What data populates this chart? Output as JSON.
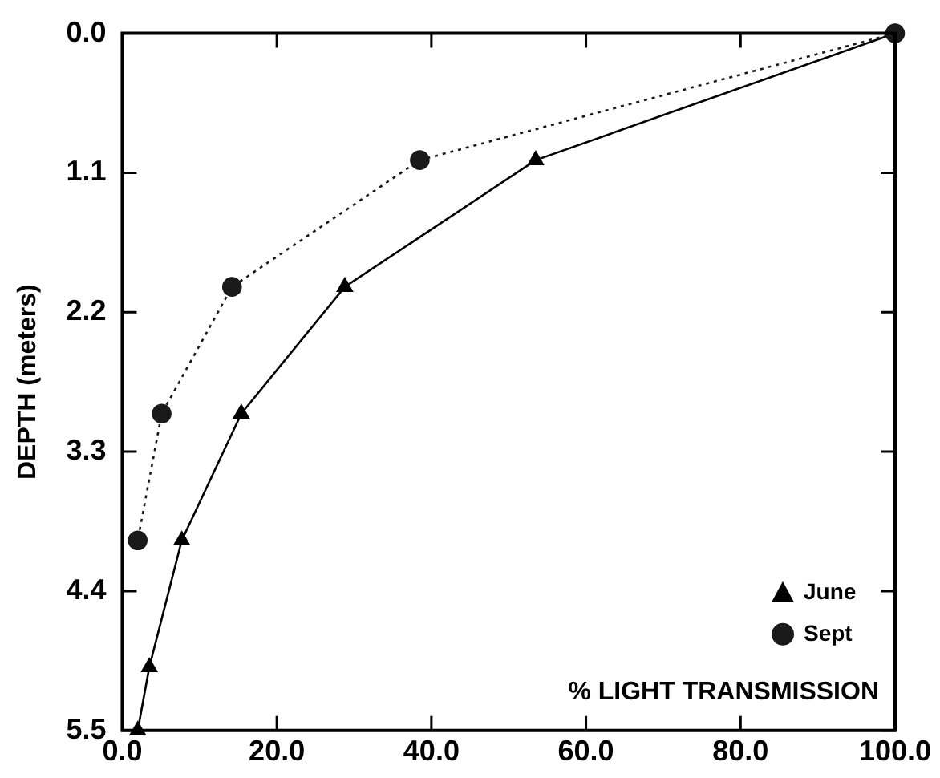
{
  "chart_data": {
    "type": "line",
    "xlabel": "% LIGHT TRANSMISSION",
    "ylabel": "DEPTH (meters)",
    "legend": "bottom right",
    "grid": false,
    "xlim": [
      0,
      100
    ],
    "xticks": [
      {
        "value": 0,
        "label": "0.0"
      },
      {
        "value": 20,
        "label": "20.0"
      },
      {
        "value": 40,
        "label": "40.0"
      },
      {
        "value": 60,
        "label": "60.0"
      },
      {
        "value": 80,
        "label": "80.0"
      },
      {
        "value": 100,
        "label": "100.0"
      }
    ],
    "ylim": [
      5.5,
      0
    ],
    "yticks": [
      {
        "value": 0,
        "label": "0.0"
      },
      {
        "value": 1.1,
        "label": "1.1"
      },
      {
        "value": 2.2,
        "label": "2.2"
      },
      {
        "value": 3.3,
        "label": "3.3"
      },
      {
        "value": 4.4,
        "label": "4.4"
      },
      {
        "value": 5.5,
        "label": "5.5"
      }
    ],
    "series": [
      {
        "name": "June",
        "color": "#000000",
        "marker": "triangle",
        "line_style": "solid",
        "x": [
          100,
          53.5,
          28.8,
          15.4,
          7.7,
          3.5,
          2.0
        ],
        "values": [
          0,
          1.0,
          2.0,
          3.0,
          4.0,
          5.0,
          5.5
        ]
      },
      {
        "name": "Sept",
        "color": "#1a1a1a",
        "marker": "circle",
        "line_style": "dotted",
        "x": [
          100,
          38.5,
          14.2,
          5.1,
          2.0
        ],
        "values": [
          0,
          1.0,
          2.0,
          3.0,
          4.0
        ]
      }
    ]
  }
}
